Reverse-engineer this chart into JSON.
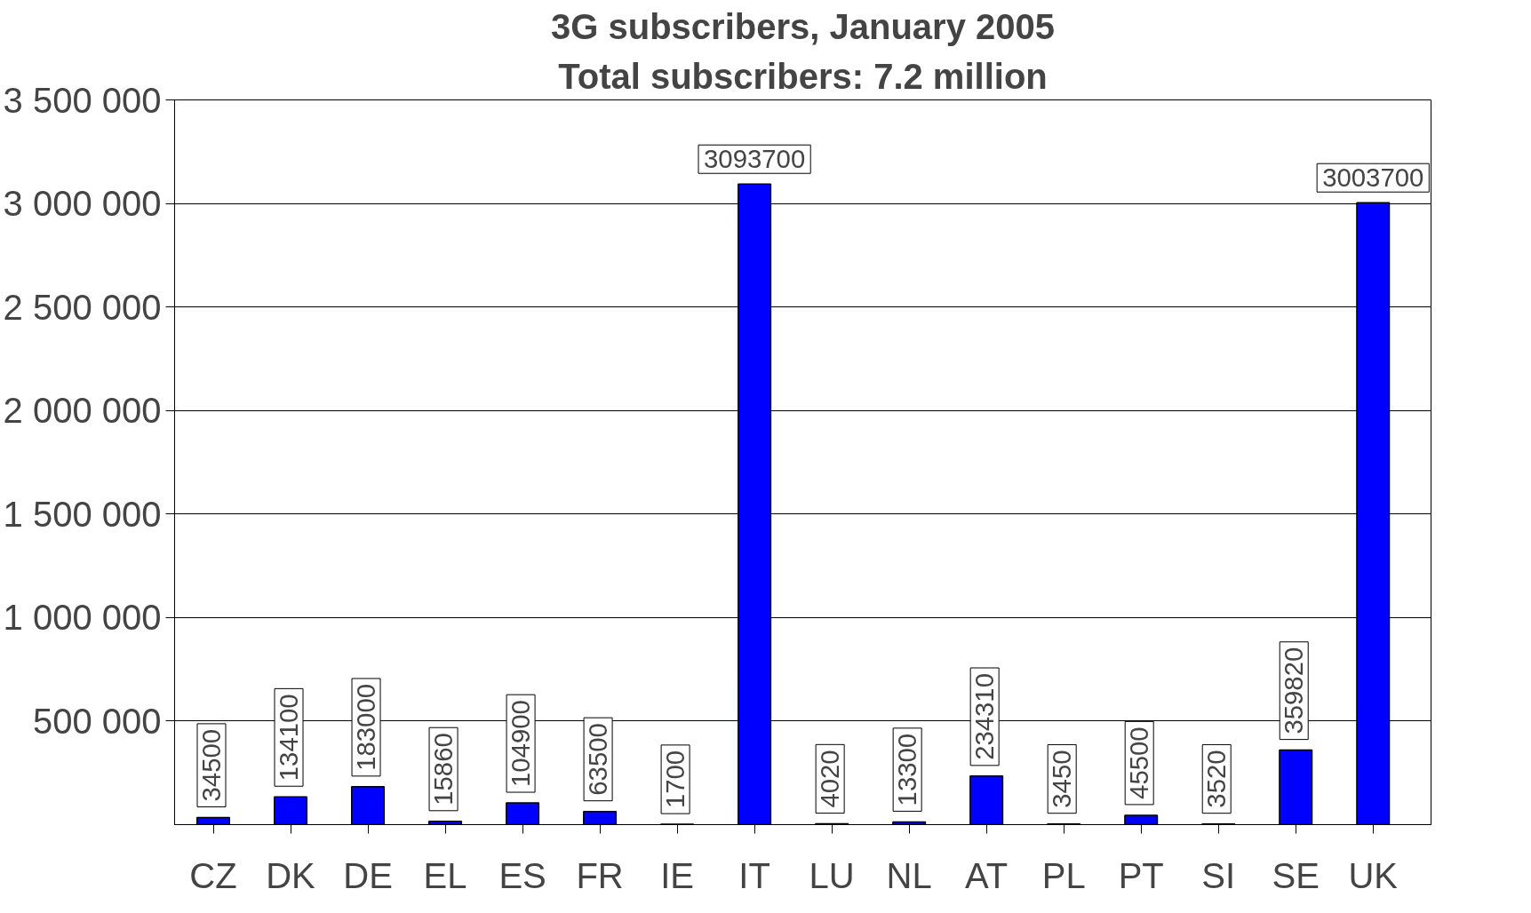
{
  "chart_data": {
    "type": "bar",
    "title": "3G subscribers, January 2005",
    "subtitle": "Total subscribers: 7.2 million",
    "categories": [
      "CZ",
      "DK",
      "DE",
      "EL",
      "ES",
      "FR",
      "IE",
      "IT",
      "LU",
      "NL",
      "AT",
      "PL",
      "PT",
      "SI",
      "SE",
      "UK"
    ],
    "values": [
      34500,
      134100,
      183000,
      15860,
      104900,
      63500,
      1700,
      3093700,
      4020,
      13300,
      234310,
      3450,
      45500,
      3520,
      359820,
      3003700
    ],
    "color": "#0000ff",
    "ylim": [
      0,
      3500000
    ],
    "yticks": [
      {
        "value": 500000,
        "label": "500 000"
      },
      {
        "value": 1000000,
        "label": "1 000 000"
      },
      {
        "value": 1500000,
        "label": "1 500 000"
      },
      {
        "value": 2000000,
        "label": "2 000 000"
      },
      {
        "value": 2500000,
        "label": "2 500 000"
      },
      {
        "value": 3000000,
        "label": "3 000 000"
      },
      {
        "value": 3500000,
        "label": "3 500 000"
      }
    ],
    "grid": "y",
    "data_labels": true
  }
}
